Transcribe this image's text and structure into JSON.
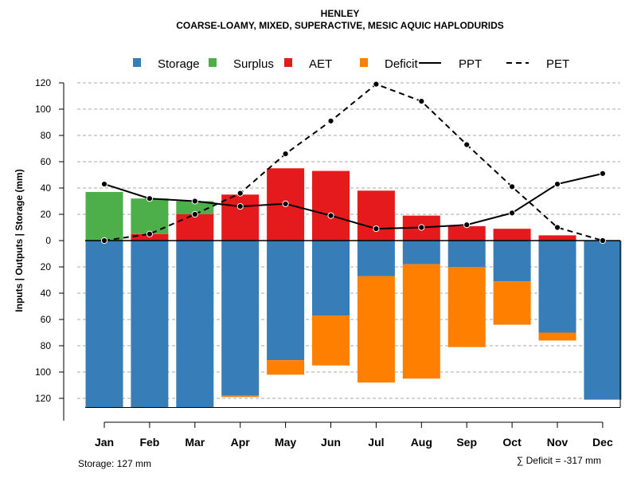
{
  "chart_data": {
    "type": "bar",
    "title": "HENLEY",
    "subtitle": "COARSE-LOAMY, MIXED, SUPERACTIVE, MESIC AQUIC HAPLODURIDS",
    "ylabel": "Inputs | Outputs | Storage    (mm)",
    "ylim": [
      -127,
      120
    ],
    "y_ticks": [
      120,
      100,
      80,
      60,
      40,
      20,
      0,
      -20,
      -40,
      -60,
      -80,
      -100,
      -120
    ],
    "y_tick_labels": [
      "120",
      "100",
      "80",
      "60",
      "40",
      "20",
      "0",
      "20",
      "40",
      "60",
      "80",
      "100",
      "120"
    ],
    "grid": true,
    "legend_position": "top",
    "categories": [
      "Jan",
      "Feb",
      "Mar",
      "Apr",
      "May",
      "Jun",
      "Jul",
      "Aug",
      "Sep",
      "Oct",
      "Nov",
      "Dec"
    ],
    "legend": [
      {
        "key": "storage",
        "label": "Storage",
        "kind": "box",
        "color": "#377EB8"
      },
      {
        "key": "surplus",
        "label": "Surplus",
        "kind": "box",
        "color": "#4DAF4A"
      },
      {
        "key": "aet",
        "label": "AET",
        "kind": "box",
        "color": "#E41A1C"
      },
      {
        "key": "deficit",
        "label": "Deficit",
        "kind": "box",
        "color": "#FF7F00"
      },
      {
        "key": "ppt",
        "label": "PPT",
        "kind": "solid",
        "color": "#000000"
      },
      {
        "key": "pet",
        "label": "PET",
        "kind": "dashed",
        "color": "#000000"
      }
    ],
    "series": [
      {
        "name": "Storage",
        "values": [
          127,
          127,
          127,
          118,
          91,
          57,
          27,
          18,
          20,
          31,
          70,
          121
        ]
      },
      {
        "name": "Deficit",
        "values": [
          0,
          0,
          0,
          1,
          11,
          38,
          81,
          87,
          61,
          33,
          6,
          0
        ]
      },
      {
        "name": "Surplus",
        "values": [
          37,
          27,
          10,
          0,
          0,
          0,
          0,
          0,
          0,
          0,
          0,
          0
        ]
      },
      {
        "name": "AET",
        "values": [
          0,
          5,
          20,
          35,
          55,
          53,
          38,
          19,
          11,
          9,
          4,
          0
        ]
      },
      {
        "name": "PPT",
        "values": [
          43,
          32,
          30,
          26,
          28,
          19,
          9,
          10,
          12,
          21,
          43,
          51
        ]
      },
      {
        "name": "PET",
        "values": [
          0,
          5,
          20,
          36,
          66,
          91,
          119,
          106,
          73,
          41,
          10,
          0
        ]
      }
    ],
    "notes": {
      "storage": "Storage: 127 mm",
      "deficit": "∑ Deficit = -317 mm"
    }
  }
}
